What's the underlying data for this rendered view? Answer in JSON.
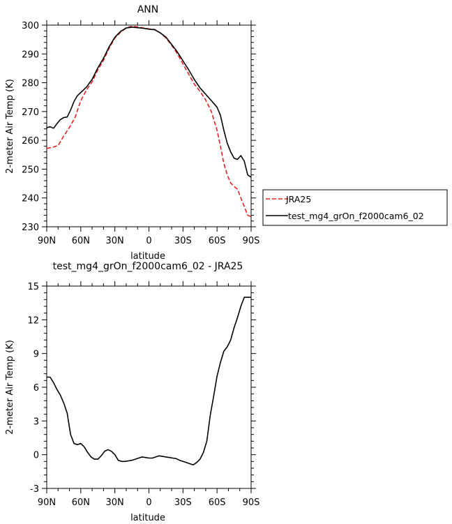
{
  "chart_data": [
    {
      "type": "line",
      "title": "ANN",
      "xlabel": "latitude",
      "ylabel": "2-meter Air Temp (K)",
      "xlim": [
        90,
        -90
      ],
      "ylim": [
        230,
        300
      ],
      "xticks": [
        90,
        60,
        30,
        0,
        -30,
        -60,
        -90
      ],
      "xtick_labels": [
        "90N",
        "60N",
        "30N",
        "0",
        "30S",
        "60S",
        "90S"
      ],
      "yticks": [
        230,
        240,
        250,
        260,
        270,
        280,
        290,
        300
      ],
      "ytick_labels": [
        "230",
        "240",
        "250",
        "260",
        "270",
        "280",
        "290",
        "300"
      ],
      "legend": "right",
      "series": [
        {
          "name": "JRA25",
          "color": "#e8211e",
          "dash": "dashed",
          "x": [
            90,
            85,
            80,
            75,
            70,
            65,
            60,
            55,
            50,
            45,
            40,
            35,
            30,
            25,
            20,
            15,
            10,
            5,
            0,
            -5,
            -10,
            -15,
            -20,
            -25,
            -30,
            -35,
            -40,
            -45,
            -50,
            -55,
            -60,
            -63,
            -66,
            -69,
            -72,
            -75,
            -78,
            -81,
            -84,
            -87,
            -90
          ],
          "y": [
            257.2,
            257.6,
            258.2,
            261.5,
            264.5,
            268,
            273.8,
            277.5,
            280.3,
            284.5,
            287.8,
            292,
            295.5,
            297.5,
            299,
            299.6,
            299.4,
            299,
            298.7,
            298.5,
            297.3,
            295.5,
            293,
            290.1,
            286.5,
            283,
            279.5,
            277,
            274,
            270,
            263.5,
            258,
            252,
            248,
            245.2,
            244,
            243,
            240,
            237,
            234,
            233.5
          ]
        },
        {
          "name": "test_mg4_grOn_f2000cam6_02",
          "color": "#000000",
          "dash": "solid",
          "x": [
            90,
            87,
            84,
            81,
            78,
            75,
            72,
            69,
            66,
            63,
            60,
            55,
            50,
            45,
            40,
            35,
            30,
            25,
            20,
            15,
            10,
            5,
            0,
            -5,
            -10,
            -15,
            -20,
            -25,
            -30,
            -35,
            -40,
            -45,
            -50,
            -55,
            -60,
            -63,
            -66,
            -69,
            -72,
            -75,
            -78,
            -81,
            -84,
            -87,
            -90
          ],
          "y": [
            264.4,
            264.7,
            264.2,
            265.8,
            267.2,
            267.9,
            268.1,
            270.5,
            273.5,
            275.5,
            276.6,
            278.5,
            281.2,
            285.2,
            288.5,
            292.5,
            295.8,
            297.8,
            299,
            299.3,
            299.1,
            298.9,
            298.6,
            298.4,
            297.3,
            295.8,
            293.3,
            290.7,
            287.6,
            284.5,
            281.1,
            278.2,
            276,
            273.8,
            271.5,
            268.7,
            263.5,
            259,
            256,
            253.8,
            253.4,
            254.7,
            252.8,
            248,
            247.2
          ]
        }
      ]
    },
    {
      "type": "line",
      "title": "test_mg4_grOn_f2000cam6_02 - JRA25",
      "xlabel": "latitude",
      "ylabel": "2-meter Air Temp (K)",
      "xlim": [
        90,
        -90
      ],
      "ylim": [
        -3,
        15
      ],
      "xticks": [
        90,
        60,
        30,
        0,
        -30,
        -60,
        -90
      ],
      "xtick_labels": [
        "90N",
        "60N",
        "30N",
        "0",
        "30S",
        "60S",
        "90S"
      ],
      "yticks": [
        -3,
        0,
        3,
        6,
        9,
        12,
        15
      ],
      "ytick_labels": [
        "-3",
        "0",
        "3",
        "6",
        "9",
        "12",
        "15"
      ],
      "series": [
        {
          "color": "#000000",
          "dash": "solid",
          "x": [
            90,
            87,
            84,
            81,
            78,
            75,
            72,
            69,
            66,
            63,
            60,
            57,
            54,
            51,
            48,
            45,
            42,
            39,
            36,
            33,
            30,
            27,
            24,
            21,
            18,
            15,
            12,
            9,
            6,
            3,
            0,
            -3,
            -6,
            -9,
            -12,
            -15,
            -18,
            -21,
            -24,
            -27,
            -30,
            -33,
            -36,
            -39,
            -42,
            -45,
            -48,
            -51,
            -54,
            -57,
            -60,
            -63,
            -66,
            -69,
            -72,
            -75,
            -78,
            -81,
            -84,
            -87,
            -90
          ],
          "y": [
            6.9,
            6.9,
            6.4,
            5.8,
            5.3,
            4.6,
            3.7,
            1.8,
            1,
            0.9,
            1,
            0.7,
            0.2,
            -0.2,
            -0.4,
            -0.4,
            -0.1,
            0.3,
            0.45,
            0.3,
            0,
            -0.5,
            -0.6,
            -0.6,
            -0.55,
            -0.5,
            -0.4,
            -0.3,
            -0.2,
            -0.25,
            -0.3,
            -0.3,
            -0.2,
            -0.1,
            -0.15,
            -0.2,
            -0.25,
            -0.3,
            -0.35,
            -0.5,
            -0.6,
            -0.7,
            -0.8,
            -0.9,
            -0.7,
            -0.4,
            0.2,
            1.2,
            3.5,
            5.2,
            7,
            8.2,
            9.2,
            9.6,
            10.2,
            11.3,
            12.2,
            13.2,
            14,
            14,
            14
          ]
        }
      ]
    }
  ]
}
